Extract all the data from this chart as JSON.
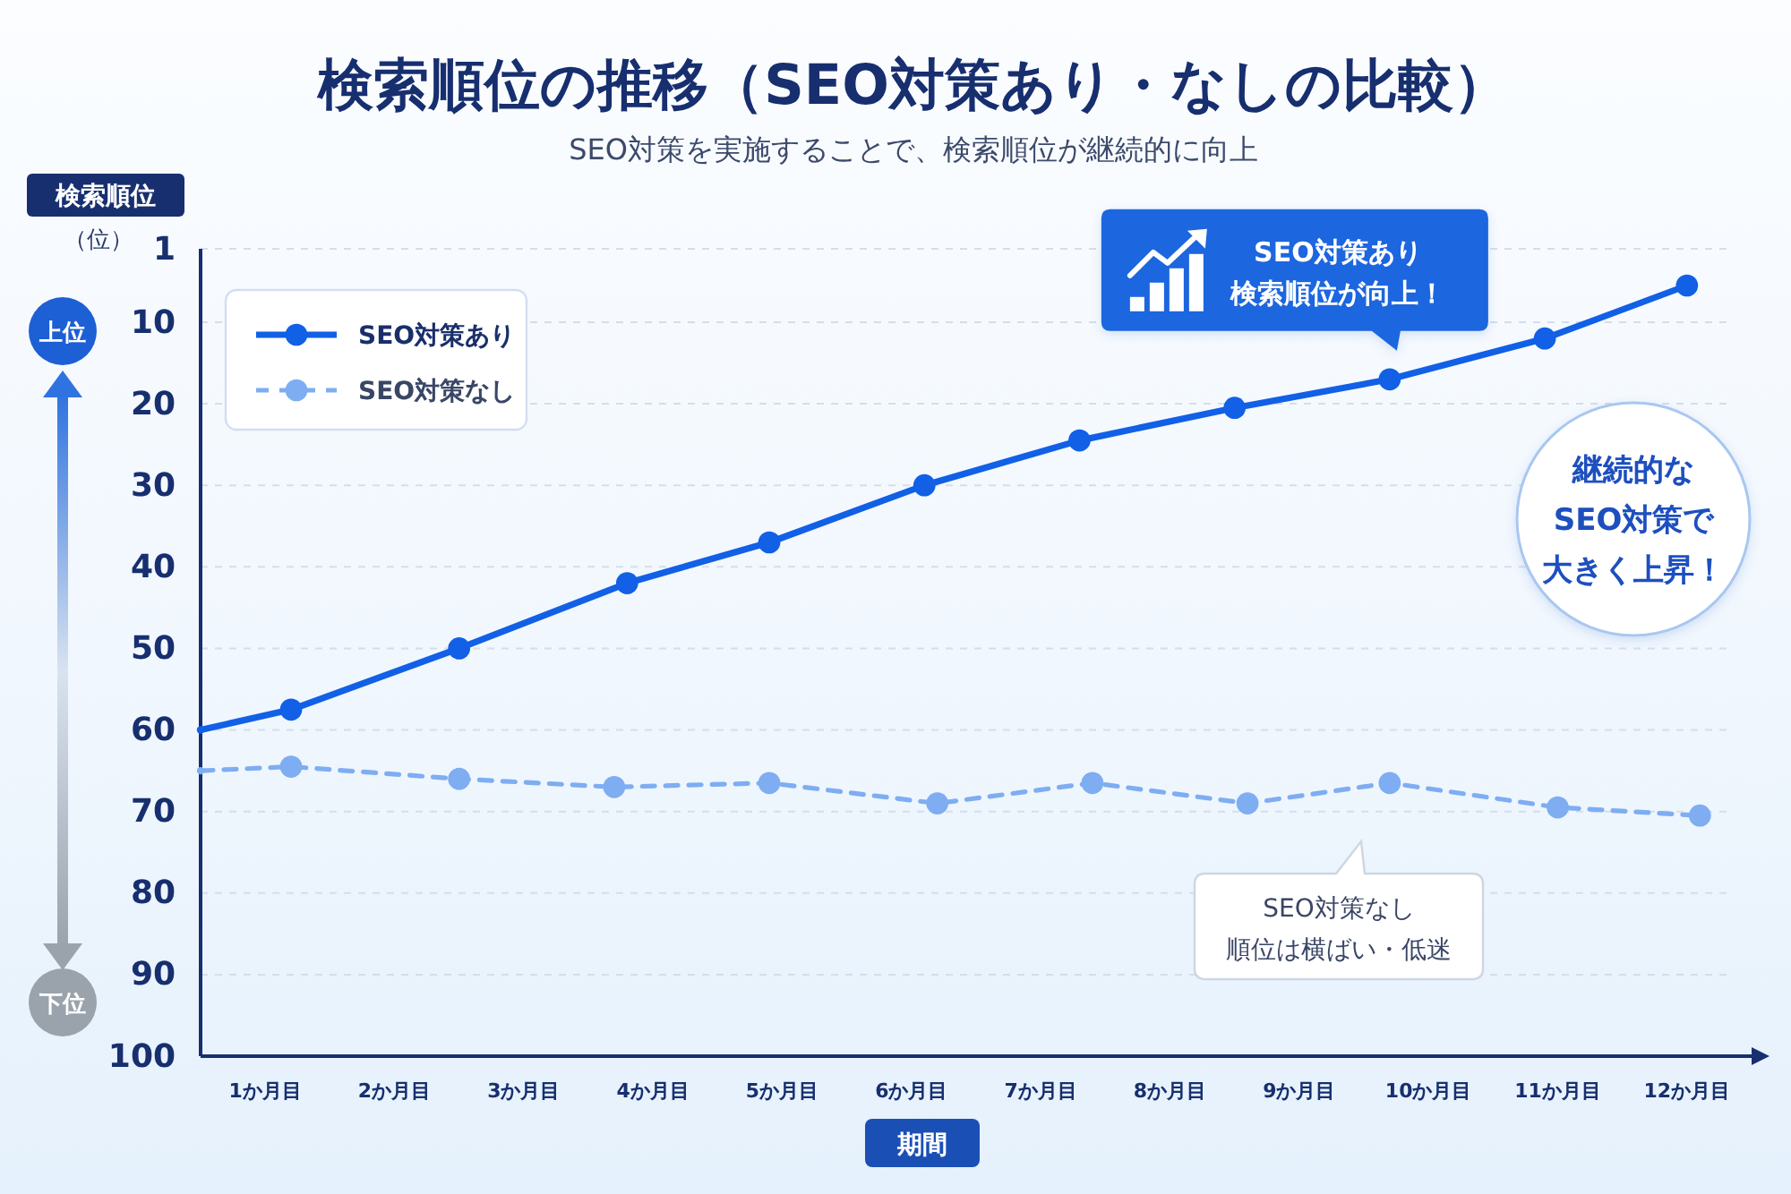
{
  "chart_data": {
    "type": "line",
    "title": "検索順位の推移（SEO対策あり・なしの比較）",
    "subtitle": "SEO対策を実施することで、検索順位が継続的に向上",
    "xlabel": "期間",
    "ylabel": "検索順位",
    "xlim": [
      0.5,
      12.5
    ],
    "xticks": [
      {
        "value": 1,
        "label": "1か月目"
      },
      {
        "value": 2,
        "label": "2か月目"
      },
      {
        "value": 3,
        "label": "3か月目"
      },
      {
        "value": 4,
        "label": "4か月目"
      },
      {
        "value": 5,
        "label": "5か月目"
      },
      {
        "value": 6,
        "label": "6か月目"
      },
      {
        "value": 7,
        "label": "7か月目"
      },
      {
        "value": 8,
        "label": "8か月目"
      },
      {
        "value": 9,
        "label": "9か月目"
      },
      {
        "value": 10,
        "label": "10か月目"
      },
      {
        "value": 11,
        "label": "11か月目"
      },
      {
        "value": 12,
        "label": "12か月目"
      }
    ],
    "ylim": [
      100,
      1
    ],
    "yticks": [
      1,
      10,
      20,
      30,
      40,
      50,
      60,
      70,
      80,
      90,
      100
    ],
    "grid": "y",
    "legend": "top left",
    "marker": "circle",
    "series": [
      {
        "name": "SEO対策あり",
        "color": "#1160e6",
        "line_style": "solid",
        "x": [
          0.5,
          1.2,
          2.5,
          3.8,
          4.9,
          6.1,
          7.3,
          8.5,
          9.7,
          10.9,
          12.0
        ],
        "values": [
          60,
          57.5,
          50,
          42,
          37,
          30,
          24.5,
          20.5,
          17,
          12,
          5.5
        ]
      },
      {
        "name": "SEO対策なし",
        "color": "#7eadf2",
        "line_style": "dashed",
        "x": [
          0.5,
          1.2,
          2.5,
          3.7,
          4.9,
          6.2,
          7.4,
          8.6,
          9.7,
          11.0,
          12.1
        ],
        "values": [
          65,
          64.5,
          66,
          67,
          66.5,
          69,
          66.5,
          69,
          66.5,
          69.5,
          70.5
        ]
      }
    ],
    "annotations": [
      "（位）",
      "上位",
      "下位",
      {
        "text": "SEO対策あり検索順位が向上！",
        "x": 9.7,
        "y": 17
      },
      "継続的なSEO対策で大きく上昇！",
      "SEO対策なし順位は横ばい・低迷"
    ]
  }
}
